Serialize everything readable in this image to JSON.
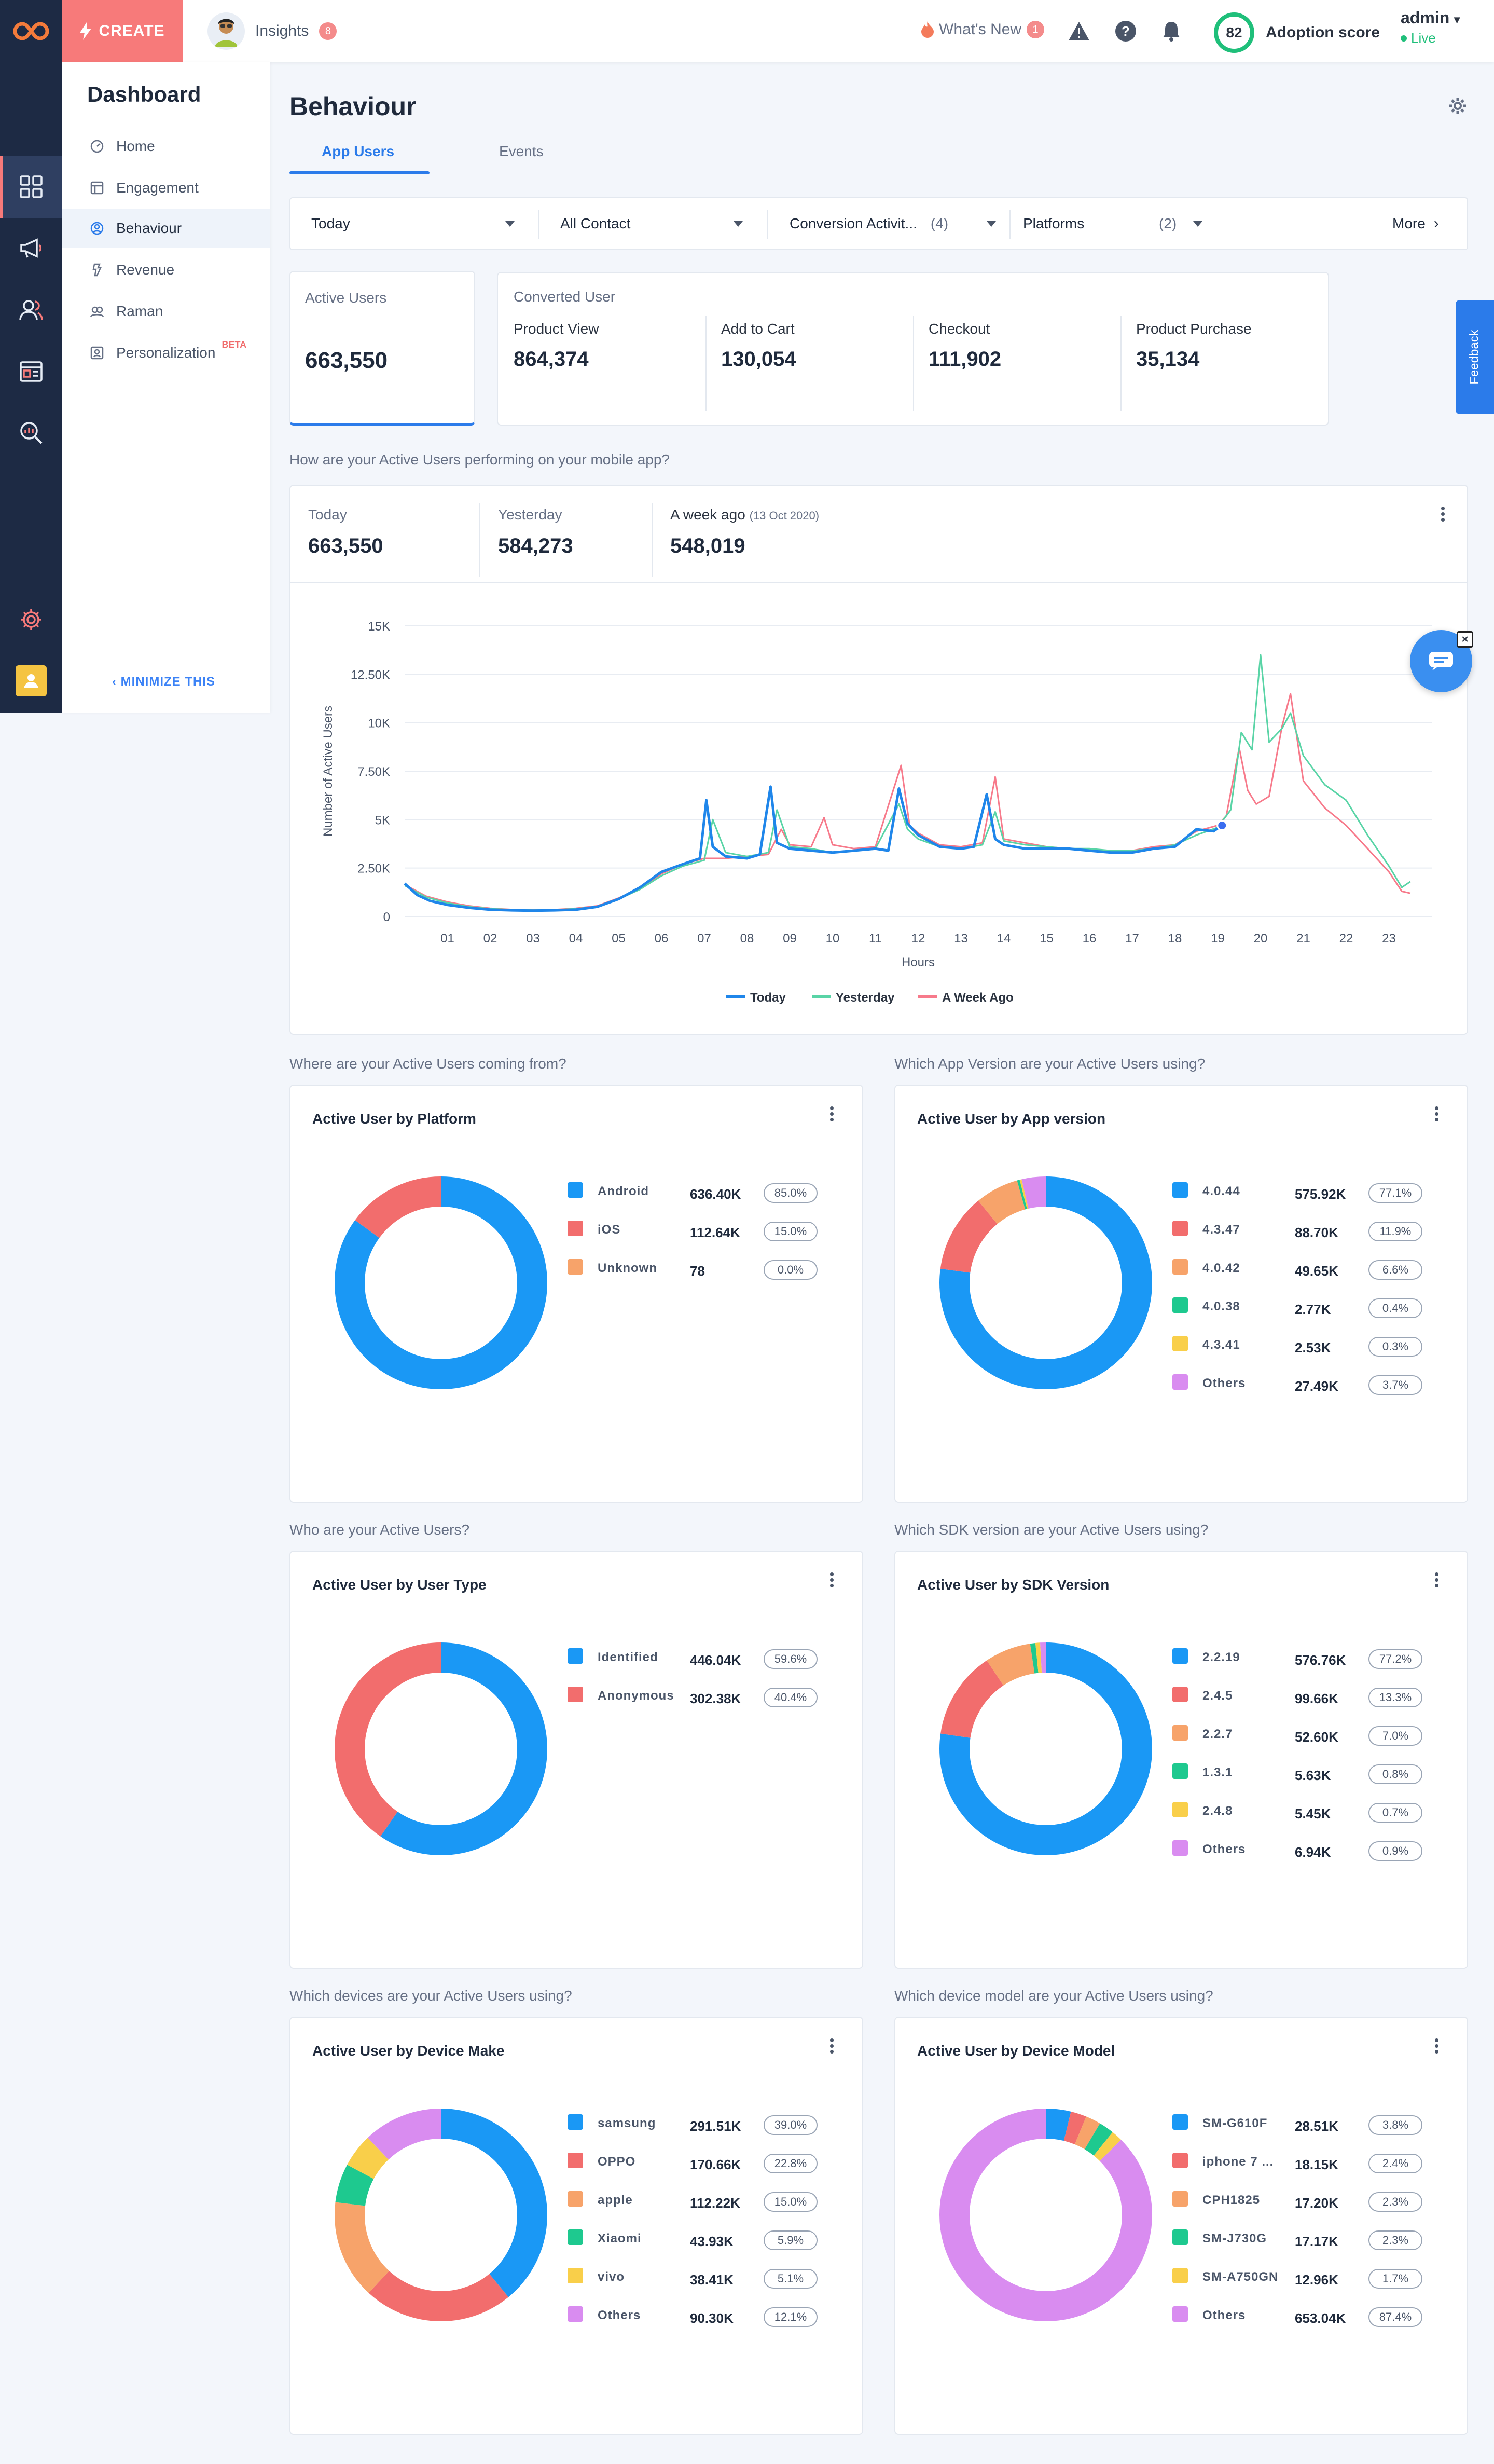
{
  "topbar": {
    "create_label": "CREATE",
    "insights_label": "Insights",
    "insights_count": "8",
    "whats_new_label": "What's New",
    "whats_new_count": "1",
    "adoption_score": "82",
    "adoption_label": "Adoption score",
    "user_name": "admin",
    "user_status": "Live"
  },
  "sidebar": {
    "title": "Dashboard",
    "items": [
      {
        "label": "Home",
        "icon": "home-icon"
      },
      {
        "label": "Engagement",
        "icon": "engagement-icon"
      },
      {
        "label": "Behaviour",
        "icon": "behaviour-icon"
      },
      {
        "label": "Revenue",
        "icon": "revenue-icon"
      },
      {
        "label": "Raman",
        "icon": "raman-icon"
      },
      {
        "label": "Personalization",
        "icon": "personalization-icon",
        "badge": "BETA"
      }
    ],
    "minimize_label": "MINIMIZE THIS"
  },
  "page": {
    "title": "Behaviour",
    "tabs": [
      "App Users",
      "Events"
    ]
  },
  "filters": {
    "date": "Today",
    "contact": "All Contact",
    "conversion": "Conversion Activit...",
    "conversion_count": "(4)",
    "platforms": "Platforms",
    "platforms_count": "(2)",
    "more": "More"
  },
  "kpis": {
    "active_label": "Active Users",
    "active_value": "663,550",
    "converted_label": "Converted User",
    "converted": [
      {
        "label": "Product View",
        "value": "864,374"
      },
      {
        "label": "Add to Cart",
        "value": "130,054"
      },
      {
        "label": "Checkout",
        "value": "111,902"
      },
      {
        "label": "Product Purchase",
        "value": "35,134"
      }
    ]
  },
  "trend": {
    "question": "How are your Active Users performing on your mobile app?",
    "today_label": "Today",
    "today_value": "663,550",
    "yesterday_label": "Yesterday",
    "yesterday_value": "584,273",
    "weekago_label": "A week ago",
    "weekago_date": "(13 Oct 2020)",
    "weekago_value": "548,019"
  },
  "feedback_label": "Feedback",
  "chart_data": [
    {
      "type": "line",
      "ylabel": "Number of Active Users",
      "xlabel": "Hours",
      "ylim": [
        0,
        15000
      ],
      "yticks": [
        "15K",
        "12.50K",
        "10K",
        "7.50K",
        "5K",
        "2.50K",
        "0"
      ],
      "xticks": [
        "01",
        "02",
        "03",
        "04",
        "05",
        "06",
        "07",
        "08",
        "09",
        "10",
        "11",
        "12",
        "13",
        "14",
        "15",
        "16",
        "17",
        "18",
        "19",
        "20",
        "21",
        "22",
        "23"
      ],
      "grid": true,
      "legend_position": "bottom",
      "series": [
        {
          "name": "Today",
          "color": "#1f86ea",
          "x": [
            0,
            0.3,
            0.6,
            1,
            1.5,
            2,
            2.5,
            3,
            3.5,
            4,
            4.5,
            5,
            5.5,
            6,
            6.5,
            6.9,
            7.05,
            7.2,
            7.5,
            8,
            8.3,
            8.55,
            8.7,
            9,
            9.5,
            10,
            10.5,
            11,
            11.3,
            11.55,
            11.75,
            12,
            12.5,
            13,
            13.3,
            13.6,
            13.8,
            14,
            14.5,
            15,
            15.5,
            16,
            16.5,
            17,
            17.5,
            18,
            18.5,
            18.9,
            19.1
          ],
          "y": [
            1700,
            1100,
            800,
            600,
            450,
            350,
            320,
            300,
            320,
            350,
            500,
            900,
            1500,
            2300,
            2700,
            3000,
            6000,
            3600,
            3100,
            3000,
            3200,
            6700,
            3800,
            3500,
            3400,
            3300,
            3400,
            3500,
            3400,
            6600,
            4800,
            4200,
            3600,
            3500,
            3600,
            6300,
            4000,
            3700,
            3500,
            3500,
            3500,
            3400,
            3300,
            3300,
            3500,
            3600,
            4500,
            4400,
            4700
          ]
        },
        {
          "name": "Yesterday",
          "color": "#59d4a6",
          "x": [
            0,
            0.5,
            1,
            1.5,
            2,
            2.5,
            3,
            3.5,
            4,
            4.5,
            5,
            5.5,
            6,
            6.5,
            7,
            7.2,
            7.5,
            8,
            8.5,
            8.7,
            9,
            9.5,
            10,
            10.5,
            11,
            11.55,
            11.75,
            12,
            12.5,
            13,
            13.5,
            13.8,
            14,
            14.5,
            15,
            15.5,
            16,
            16.5,
            17,
            17.5,
            18,
            18.5,
            19,
            19.3,
            19.55,
            19.8,
            20,
            20.2,
            20.5,
            20.7,
            21,
            21.5,
            22,
            22.5,
            23,
            23.3,
            23.5
          ],
          "y": [
            1600,
            1000,
            700,
            500,
            400,
            350,
            330,
            340,
            400,
            500,
            900,
            1400,
            2100,
            2600,
            2900,
            5000,
            3300,
            3100,
            3300,
            5500,
            3600,
            3500,
            3300,
            3400,
            3500,
            5800,
            4500,
            4000,
            3600,
            3500,
            3700,
            5400,
            3900,
            3700,
            3600,
            3500,
            3500,
            3400,
            3400,
            3500,
            3700,
            4200,
            4600,
            5500,
            9500,
            8600,
            13500,
            9000,
            9700,
            10500,
            8300,
            6800,
            6000,
            4200,
            2600,
            1500,
            1800
          ]
        },
        {
          "name": "A Week Ago",
          "color": "#f77a8b",
          "x": [
            0,
            0.5,
            1,
            1.5,
            2,
            2.5,
            3,
            3.5,
            4,
            4.5,
            5,
            5.5,
            6,
            6.5,
            7,
            7.5,
            8,
            8.5,
            8.8,
            9,
            9.5,
            9.8,
            10,
            10.5,
            11,
            11.6,
            11.8,
            12,
            12.5,
            13,
            13.5,
            13.8,
            14,
            14.5,
            15,
            15.5,
            16,
            16.5,
            17,
            17.5,
            18,
            18.5,
            19,
            19.2,
            19.5,
            19.7,
            19.9,
            20.2,
            20.5,
            20.7,
            21,
            21.5,
            22,
            22.5,
            23,
            23.3,
            23.5
          ],
          "y": [
            1650,
            1050,
            750,
            550,
            420,
            360,
            340,
            350,
            420,
            550,
            950,
            1450,
            2200,
            2700,
            3000,
            3000,
            3100,
            3200,
            4500,
            3700,
            3600,
            5100,
            3700,
            3500,
            3600,
            7800,
            4700,
            4300,
            3700,
            3600,
            3800,
            7200,
            4000,
            3800,
            3600,
            3500,
            3400,
            3300,
            3400,
            3600,
            3700,
            4400,
            4700,
            5200,
            8700,
            6500,
            5800,
            6200,
            9800,
            11500,
            7000,
            5600,
            4700,
            3500,
            2300,
            1300,
            1200
          ]
        }
      ]
    },
    {
      "type": "pie",
      "title": "Active User by Platform",
      "question": "Where are your Active Users coming from?",
      "slices": [
        {
          "label": "Android",
          "value": "636.40K",
          "pct": "85.0%",
          "share": 85.0,
          "color": "#1a98f5"
        },
        {
          "label": "iOS",
          "value": "112.64K",
          "pct": "15.0%",
          "share": 15.0,
          "color": "#f26d6d"
        },
        {
          "label": "Unknown",
          "value": "78",
          "pct": "0.0%",
          "share": 0.0,
          "color": "#f7a36a"
        }
      ]
    },
    {
      "type": "pie",
      "title": "Active User by App version",
      "question": "Which App Version are your Active Users using?",
      "slices": [
        {
          "label": "4.0.44",
          "value": "575.92K",
          "pct": "77.1%",
          "share": 77.1,
          "color": "#1a98f5"
        },
        {
          "label": "4.3.47",
          "value": "88.70K",
          "pct": "11.9%",
          "share": 11.9,
          "color": "#f26d6d"
        },
        {
          "label": "4.0.42",
          "value": "49.65K",
          "pct": "6.6%",
          "share": 6.6,
          "color": "#f7a36a"
        },
        {
          "label": "4.0.38",
          "value": "2.77K",
          "pct": "0.4%",
          "share": 0.4,
          "color": "#1ec98f"
        },
        {
          "label": "4.3.41",
          "value": "2.53K",
          "pct": "0.3%",
          "share": 0.3,
          "color": "#f9cf4a"
        },
        {
          "label": "Others",
          "value": "27.49K",
          "pct": "3.7%",
          "share": 3.7,
          "color": "#d98cf0"
        }
      ]
    },
    {
      "type": "pie",
      "title": "Active User by User Type",
      "question": "Who are your Active Users?",
      "slices": [
        {
          "label": "Identified",
          "value": "446.04K",
          "pct": "59.6%",
          "share": 59.6,
          "color": "#1a98f5"
        },
        {
          "label": "Anonymous",
          "value": "302.38K",
          "pct": "40.4%",
          "share": 40.4,
          "color": "#f26d6d"
        }
      ]
    },
    {
      "type": "pie",
      "title": "Active User by SDK Version",
      "question": "Which SDK version are your Active Users using?",
      "slices": [
        {
          "label": "2.2.19",
          "value": "576.76K",
          "pct": "77.2%",
          "share": 77.2,
          "color": "#1a98f5"
        },
        {
          "label": "2.4.5",
          "value": "99.66K",
          "pct": "13.3%",
          "share": 13.3,
          "color": "#f26d6d"
        },
        {
          "label": "2.2.7",
          "value": "52.60K",
          "pct": "7.0%",
          "share": 7.0,
          "color": "#f7a36a"
        },
        {
          "label": "1.3.1",
          "value": "5.63K",
          "pct": "0.8%",
          "share": 0.8,
          "color": "#1ec98f"
        },
        {
          "label": "2.4.8",
          "value": "5.45K",
          "pct": "0.7%",
          "share": 0.7,
          "color": "#f9cf4a"
        },
        {
          "label": "Others",
          "value": "6.94K",
          "pct": "0.9%",
          "share": 0.9,
          "color": "#d98cf0"
        }
      ]
    },
    {
      "type": "pie",
      "title": "Active User by Device Make",
      "question": "Which devices are your Active Users using?",
      "slices": [
        {
          "label": "samsung",
          "value": "291.51K",
          "pct": "39.0%",
          "share": 39.0,
          "color": "#1a98f5"
        },
        {
          "label": "OPPO",
          "value": "170.66K",
          "pct": "22.8%",
          "share": 22.8,
          "color": "#f26d6d"
        },
        {
          "label": "apple",
          "value": "112.22K",
          "pct": "15.0%",
          "share": 15.0,
          "color": "#f7a36a"
        },
        {
          "label": "Xiaomi",
          "value": "43.93K",
          "pct": "5.9%",
          "share": 5.9,
          "color": "#1ec98f"
        },
        {
          "label": "vivo",
          "value": "38.41K",
          "pct": "5.1%",
          "share": 5.1,
          "color": "#f9cf4a"
        },
        {
          "label": "Others",
          "value": "90.30K",
          "pct": "12.1%",
          "share": 12.1,
          "color": "#d98cf0"
        }
      ]
    },
    {
      "type": "pie",
      "title": "Active User by Device Model",
      "question": "Which device model are your Active Users using?",
      "slices": [
        {
          "label": "SM-G610F",
          "value": "28.51K",
          "pct": "3.8%",
          "share": 3.8,
          "color": "#1a98f5"
        },
        {
          "label": "iphone 7 ...",
          "value": "18.15K",
          "pct": "2.4%",
          "share": 2.4,
          "color": "#f26d6d"
        },
        {
          "label": "CPH1825",
          "value": "17.20K",
          "pct": "2.3%",
          "share": 2.3,
          "color": "#f7a36a"
        },
        {
          "label": "SM-J730G",
          "value": "17.17K",
          "pct": "2.3%",
          "share": 2.3,
          "color": "#1ec98f"
        },
        {
          "label": "SM-A750GN",
          "value": "12.96K",
          "pct": "1.7%",
          "share": 1.7,
          "color": "#f9cf4a"
        },
        {
          "label": "Others",
          "value": "653.04K",
          "pct": "87.4%",
          "share": 87.4,
          "color": "#d98cf0"
        }
      ]
    }
  ]
}
